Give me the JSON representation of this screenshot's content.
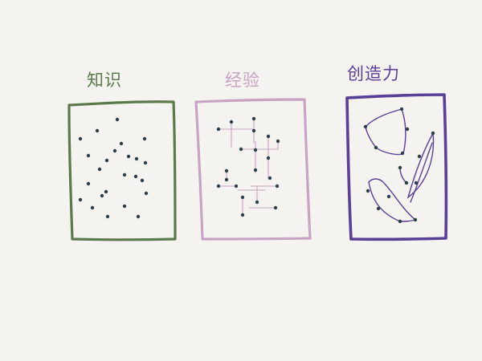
{
  "panels": [
    {
      "title": "知识",
      "color": "#5b7a4b"
    },
    {
      "title": "经验",
      "color": "#c9a3c4"
    },
    {
      "title": "创造力",
      "color": "#5a3f96"
    }
  ],
  "dot_color": "#2e3e4a"
}
